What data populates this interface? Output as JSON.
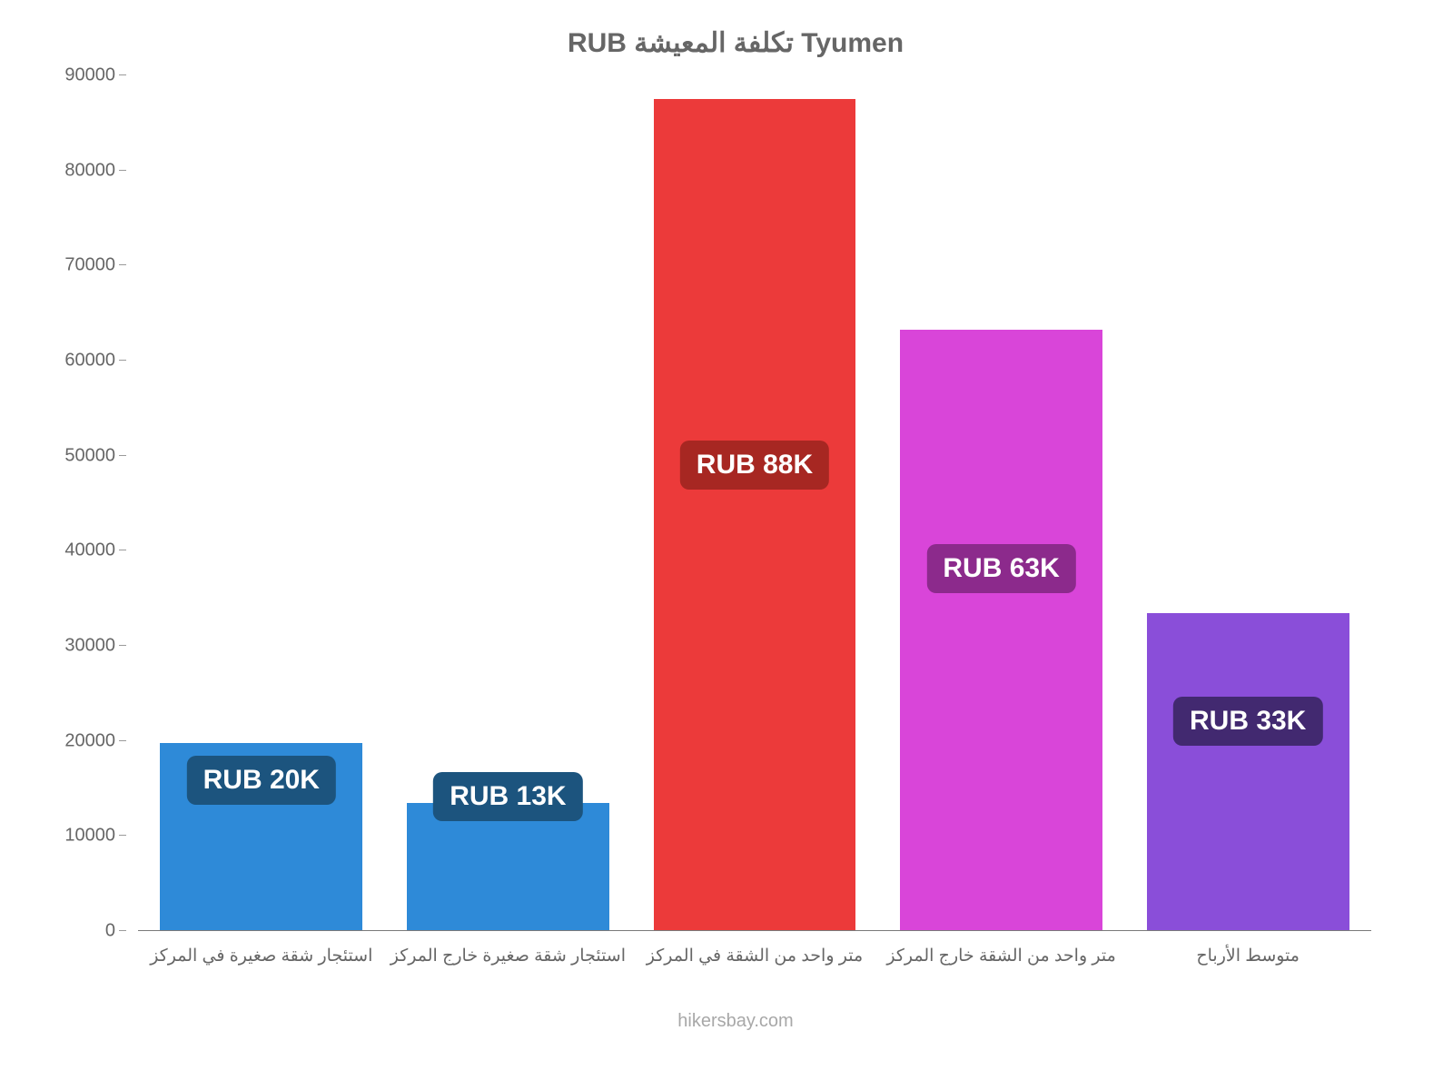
{
  "chart": {
    "type": "bar",
    "title": "Tyumen تكلفة المعيشة RUB",
    "title_fontsize": 30,
    "title_color": "#666666",
    "background_color": "#ffffff",
    "axis_color": "#7a7a7a",
    "tick_label_color": "#666666",
    "tick_label_fontsize": 20,
    "x_label_fontsize": 19,
    "ylim": [
      0,
      90000
    ],
    "ytick_step": 10000,
    "yticks": [
      0,
      10000,
      20000,
      30000,
      40000,
      50000,
      60000,
      70000,
      80000,
      90000
    ],
    "bar_width_ratio": 0.82,
    "categories": [
      "استئجار شقة صغيرة في المركز",
      "استئجار شقة صغيرة خارج المركز",
      "متر واحد من الشقة في المركز",
      "متر واحد من الشقة خارج المركز",
      "متوسط الأرباح"
    ],
    "values": [
      19700,
      13400,
      87500,
      63200,
      33400
    ],
    "bar_colors": [
      "#2e8ad8",
      "#2e8ad8",
      "#ec3a3a",
      "#d945d9",
      "#8a4ed9"
    ],
    "badge_labels": [
      "RUB 20K",
      "RUB 13K",
      "RUB 88K",
      "RUB 63K",
      "RUB 33K"
    ],
    "badge_bg_colors": [
      "#1c547e",
      "#1c547e",
      "#a72722",
      "#8c2a8c",
      "#422970"
    ],
    "badge_text_color": "#ffffff",
    "badge_fontsize": 30,
    "badge_positions": [
      {
        "value_anchor": 13200
      },
      {
        "value_anchor": 11500
      },
      {
        "value_anchor": 46300
      },
      {
        "value_anchor": 35400
      },
      {
        "value_anchor": 19400
      }
    ],
    "footer": "hikersbay.com",
    "footer_color": "#a8a8a8",
    "footer_fontsize": 20
  }
}
